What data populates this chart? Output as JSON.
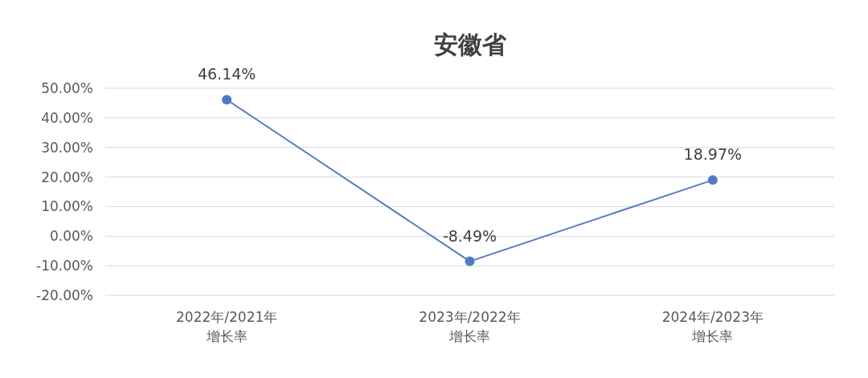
{
  "chart_data": {
    "type": "line",
    "title": "安徽省",
    "categories": [
      "2022年/2021年增长率",
      "2023年/2022年增长率",
      "2024年/2023年增长率"
    ],
    "series": [
      {
        "color": "#4f7cc0",
        "values": [
          46.14,
          -8.49,
          18.97
        ],
        "value_labels": [
          "46.14%",
          "-8.49%",
          "18.97%"
        ]
      }
    ],
    "ylim": [
      -20,
      50
    ],
    "yticks": [
      {
        "value": -20,
        "label": "-20.00%"
      },
      {
        "value": -10,
        "label": "-10.00%"
      },
      {
        "value": 0,
        "label": "0.00%"
      },
      {
        "value": 10,
        "label": "10.00%"
      },
      {
        "value": 20,
        "label": "20.00%"
      },
      {
        "value": 30,
        "label": "30.00%"
      },
      {
        "value": 40,
        "label": "40.00%"
      },
      {
        "value": 50,
        "label": "50.00%"
      }
    ],
    "grid": "y",
    "marker": "circle",
    "line_style": "solid"
  }
}
